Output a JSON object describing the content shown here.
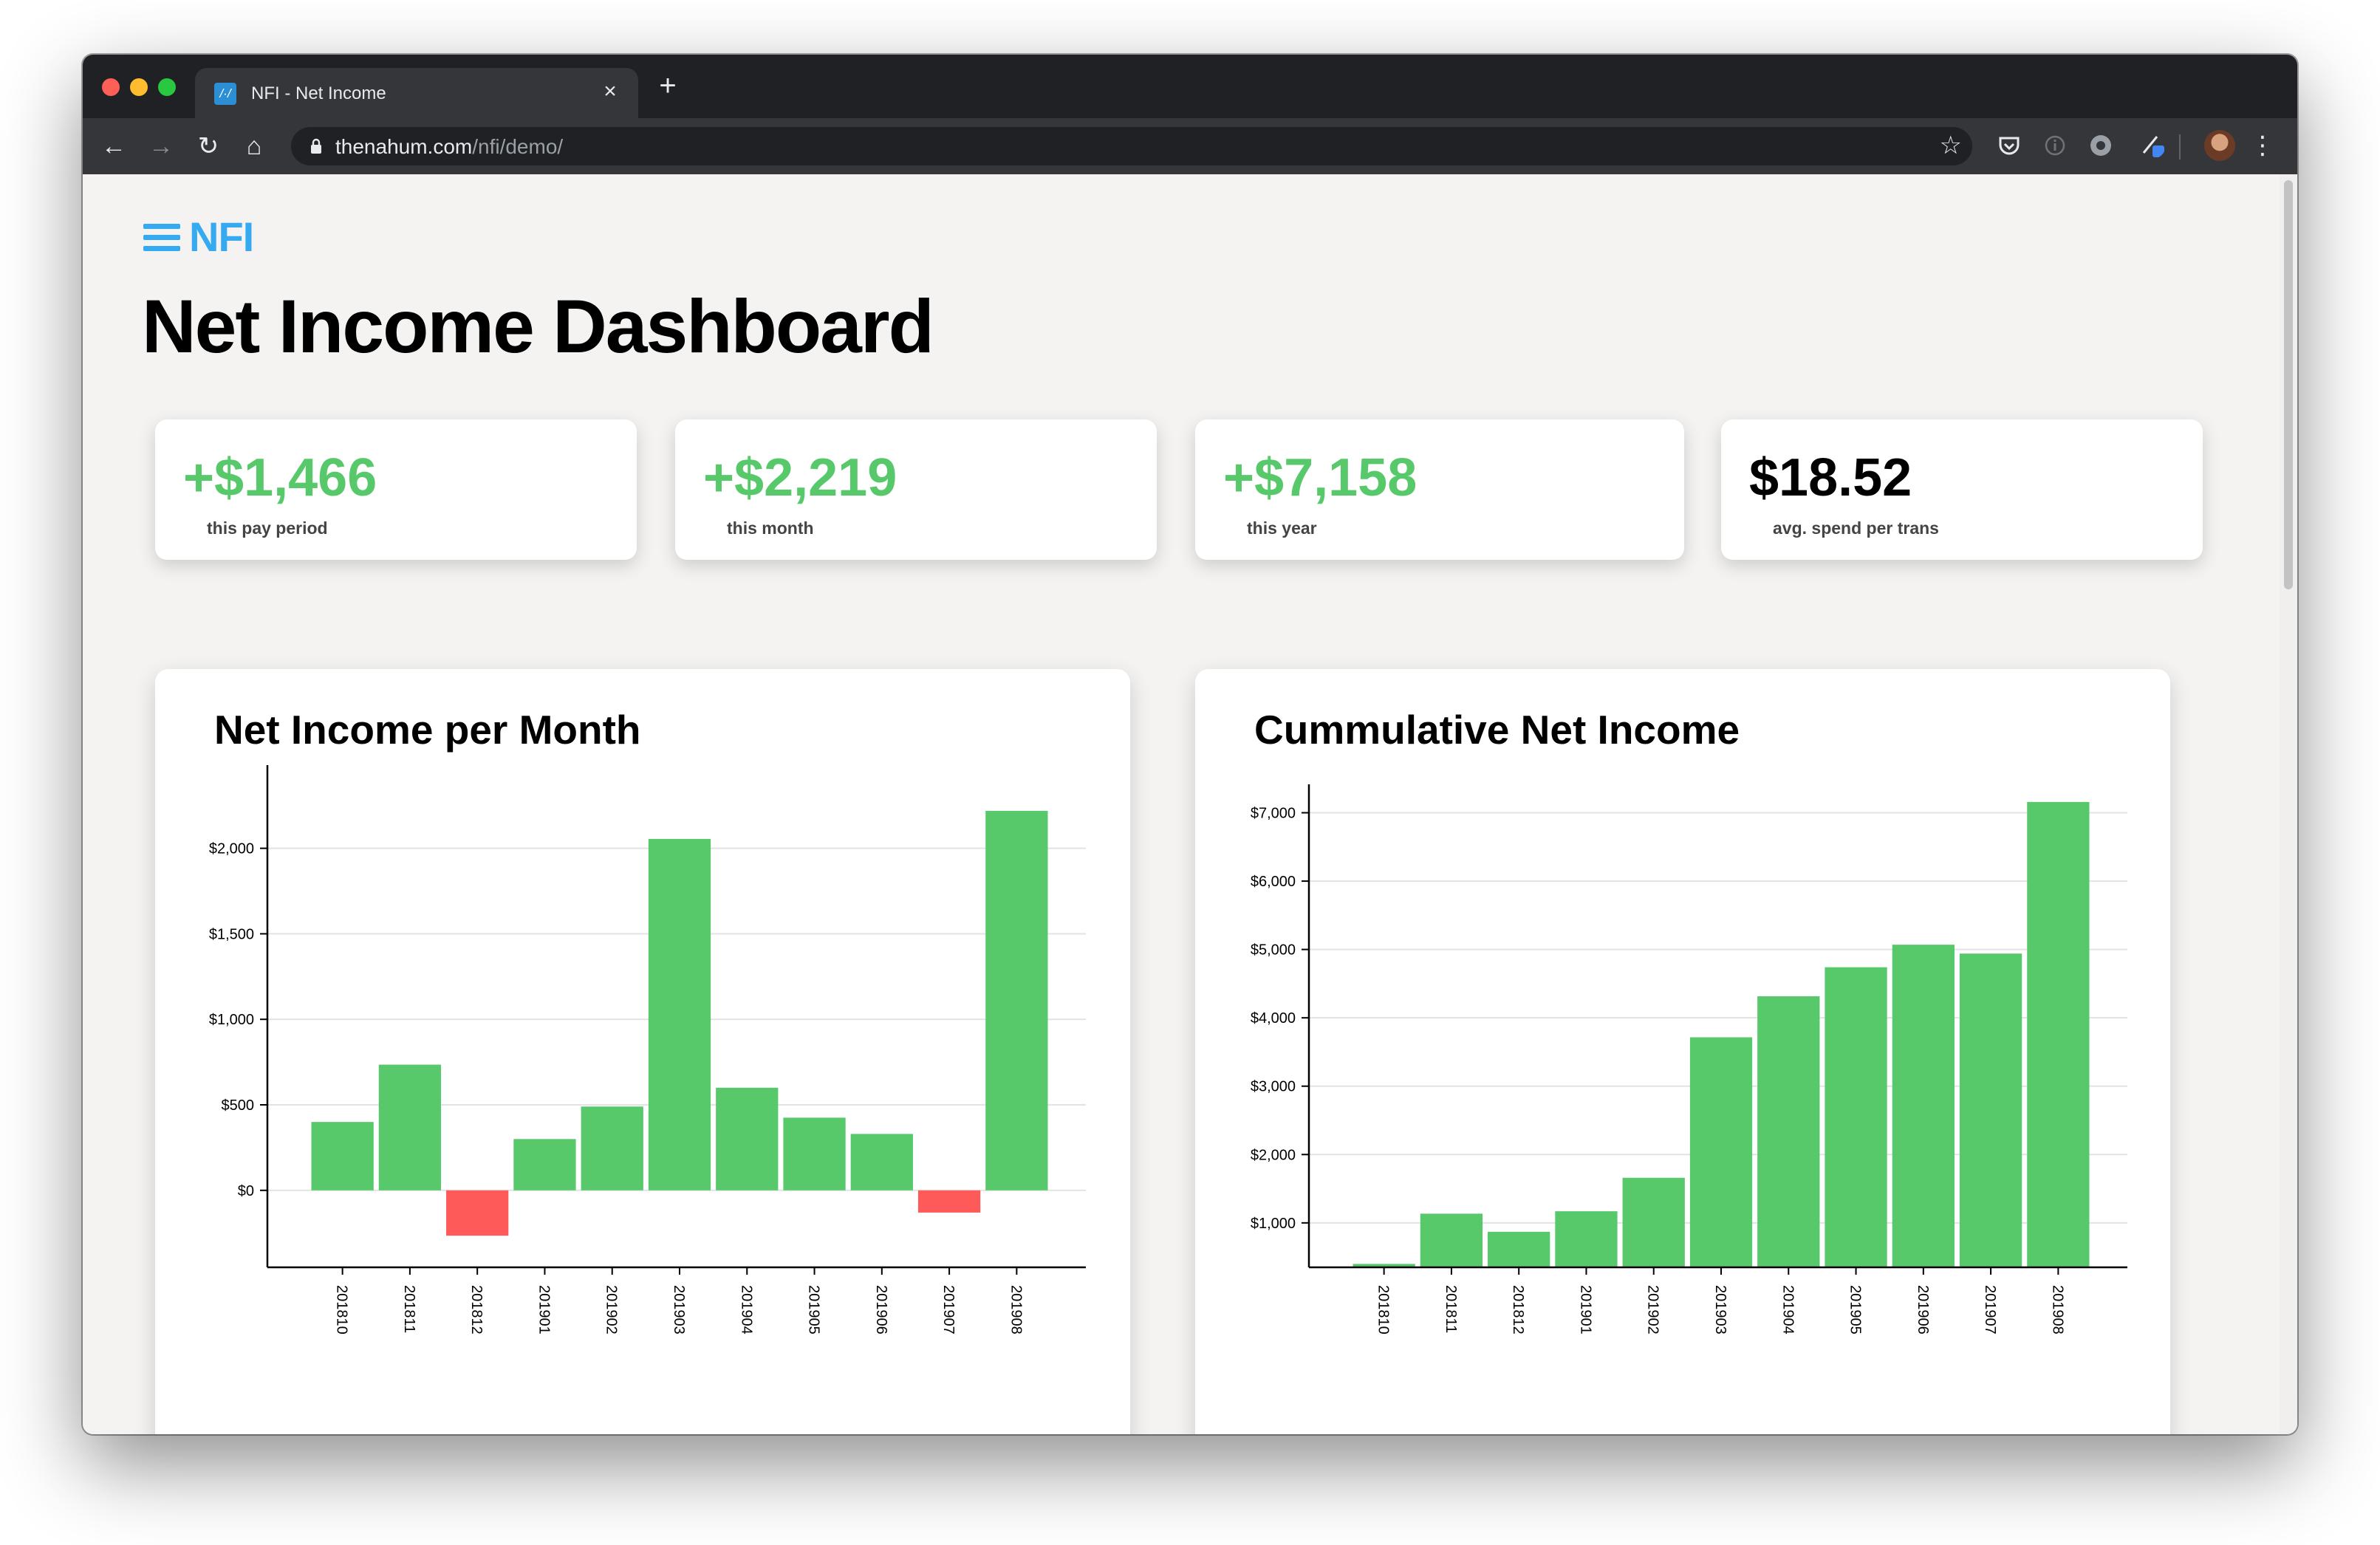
{
  "browser": {
    "tab_title": "NFI - Net Income",
    "tab_favicon_glyph": "/·/",
    "url_host": "thenahum.com",
    "url_path": "/nfi/demo/",
    "icons": [
      "back-icon",
      "forward-icon",
      "reload-icon",
      "home-icon",
      "lock-icon",
      "star-icon",
      "pocket-icon",
      "info-extension-icon",
      "circle-extension-icon",
      "pen-extension-icon",
      "avatar",
      "more-menu-icon"
    ]
  },
  "app": {
    "brand": "NFI",
    "title": "Net Income Dashboard",
    "accent_color": "#35aaf0",
    "positive_color": "#58c96b",
    "negative_color": "#ff5a5a"
  },
  "stats": [
    {
      "value": "+$1,466",
      "label": "this pay period",
      "positive": true
    },
    {
      "value": "+$2,219",
      "label": "this month",
      "positive": true
    },
    {
      "value": "+$7,158",
      "label": "this year",
      "positive": true
    },
    {
      "value": "$18.52",
      "label": "avg. spend per trans",
      "positive": false
    }
  ],
  "chart_data": [
    {
      "type": "bar",
      "title": "Net Income per Month",
      "categories": [
        "201810",
        "201811",
        "201812",
        "201901",
        "201902",
        "201903",
        "201904",
        "201905",
        "201906",
        "201907",
        "201908"
      ],
      "values": [
        400,
        735,
        -265,
        300,
        490,
        2055,
        600,
        425,
        330,
        -130,
        2219
      ],
      "ylim": [
        -450,
        2400
      ],
      "yticks": [
        0,
        500,
        1000,
        1500,
        2000
      ],
      "ytick_labels": [
        "$0",
        "$500",
        "$1,000",
        "$1,500",
        "$2,000"
      ],
      "grid": true
    },
    {
      "type": "bar",
      "title": "Cummulative Net Income",
      "categories": [
        "201810",
        "201811",
        "201812",
        "201901",
        "201902",
        "201903",
        "201904",
        "201905",
        "201906",
        "201907",
        "201908"
      ],
      "values": [
        400,
        1135,
        870,
        1170,
        1660,
        3715,
        4315,
        4740,
        5070,
        4940,
        7158
      ],
      "ylim": [
        350,
        7200
      ],
      "yticks": [
        1000,
        2000,
        3000,
        4000,
        5000,
        6000,
        7000
      ],
      "ytick_labels": [
        "$1,000",
        "$2,000",
        "$3,000",
        "$4,000",
        "$5,000",
        "$6,000",
        "$7,000"
      ],
      "grid": true
    }
  ]
}
